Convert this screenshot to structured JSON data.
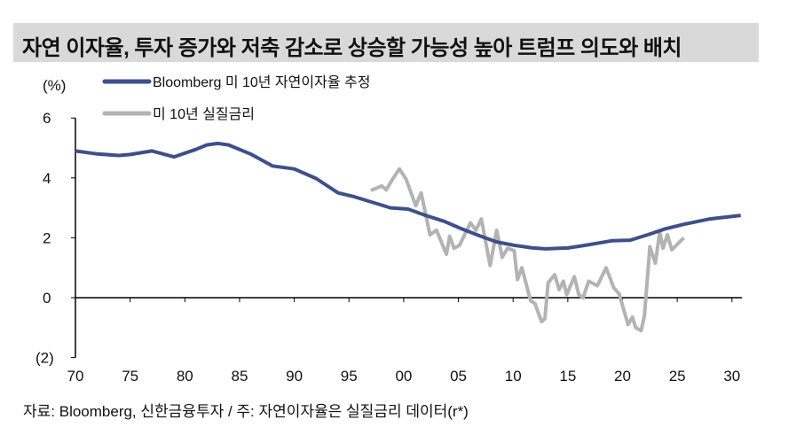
{
  "title": "자연 이자율, 투자 증가와 저축 감소로 상승할 가능성 높아 트럼프 의도와 배치",
  "source": "자료: Bloomberg, 신한금융투자 / 주: 자연이자율은 실질금리 데이터(r*)",
  "chart_data": {
    "type": "line",
    "ylabel": "(%)",
    "ylim": [
      -2,
      6
    ],
    "xlim": [
      1970,
      2031
    ],
    "yticks": [
      6,
      4,
      2,
      0,
      -2
    ],
    "ytick_labels": [
      "6",
      "4",
      "2",
      "0",
      "(2)"
    ],
    "xticks": [
      1970,
      1975,
      1980,
      1985,
      1990,
      1995,
      2000,
      2005,
      2010,
      2015,
      2020,
      2025,
      2030
    ],
    "xtick_labels": [
      "70",
      "75",
      "80",
      "85",
      "90",
      "95",
      "00",
      "05",
      "10",
      "15",
      "20",
      "25",
      "30"
    ],
    "legend_position": "top-left",
    "series": [
      {
        "name": "Bloomberg 미 10년 자연이자율 추정",
        "color": "#3f4f8a",
        "x": [
          1970,
          1972,
          1974,
          1975,
          1977,
          1979,
          1981,
          1982,
          1983,
          1984,
          1986,
          1988,
          1990,
          1992,
          1994,
          1995.5,
          1998.8,
          2000.4,
          2002,
          2003.7,
          2005.3,
          2006.9,
          2008.5,
          2010.1,
          2011.8,
          2013,
          2015,
          2016.6,
          2019,
          2020.7,
          2022.3,
          2023.9,
          2025.6,
          2028,
          2030.8
        ],
        "y": [
          4.9,
          4.8,
          4.75,
          4.78,
          4.9,
          4.7,
          4.95,
          5.1,
          5.15,
          5.1,
          4.8,
          4.4,
          4.3,
          3.98,
          3.5,
          3.37,
          3.0,
          2.96,
          2.75,
          2.55,
          2.3,
          2.07,
          1.86,
          1.75,
          1.66,
          1.63,
          1.66,
          1.75,
          1.9,
          1.92,
          2.1,
          2.3,
          2.45,
          2.63,
          2.75
        ]
      },
      {
        "name": "미 10년 실질금리",
        "color": "#b3b3b3",
        "x": [
          1997,
          1998,
          1998.4,
          1999,
          1999.6,
          2000.2,
          2001.1,
          2001.6,
          2002.4,
          2003,
          2003.9,
          2004.2,
          2004.6,
          2005.1,
          2006.1,
          2006.6,
          2007.1,
          2007.9,
          2008.5,
          2009,
          2009.5,
          2010.1,
          2010.4,
          2010.8,
          2011.6,
          2012,
          2012.6,
          2012.9,
          2013.2,
          2013.8,
          2014.2,
          2014.6,
          2014.9,
          2015.6,
          2016,
          2016.4,
          2016.9,
          2017.7,
          2018.5,
          2019.2,
          2019.7,
          2020.5,
          2020.9,
          2021.2,
          2021.7,
          2022,
          2022.5,
          2023,
          2023.4,
          2023.7,
          2024.1,
          2024.5,
          2025.6
        ],
        "y": [
          3.58,
          3.73,
          3.6,
          3.97,
          4.3,
          3.97,
          3.07,
          3.5,
          2.1,
          2.25,
          1.45,
          2.05,
          1.65,
          1.75,
          2.5,
          2.25,
          2.63,
          1.07,
          2.25,
          1.35,
          1.65,
          1.57,
          0.6,
          1.0,
          -0.1,
          -0.2,
          -0.8,
          -0.7,
          0.5,
          0.77,
          0.27,
          0.55,
          0.1,
          0.7,
          0.1,
          0.0,
          0.55,
          0.4,
          1.0,
          0.33,
          0.12,
          -0.9,
          -0.65,
          -1.0,
          -1.1,
          -0.6,
          1.7,
          1.15,
          2.2,
          1.65,
          2.1,
          1.6,
          2.0
        ]
      }
    ]
  }
}
